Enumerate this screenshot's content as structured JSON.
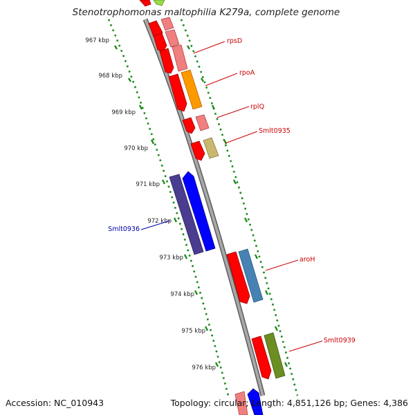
{
  "title": "Stenotrophomonas maltophilia K279a, complete genome",
  "footer": {
    "accession": "Accession: NC_010943",
    "topology": "Topology: circular; Length: 4,851,126 bp; Genes: 4,386"
  },
  "ticks": [
    {
      "label": "967 kbp"
    },
    {
      "label": "968 kbp"
    },
    {
      "label": "969 kbp"
    },
    {
      "label": "970 kbp"
    },
    {
      "label": "971 kbp"
    },
    {
      "label": "972 kbp"
    },
    {
      "label": "973 kbp"
    },
    {
      "label": "974 kbp"
    },
    {
      "label": "975 kbp"
    },
    {
      "label": "976 kbp"
    }
  ],
  "gene_labels": [
    {
      "name": "rpsD",
      "color": "#cc0000"
    },
    {
      "name": "rpoA",
      "color": "#cc0000"
    },
    {
      "name": "rplQ",
      "color": "#cc0000"
    },
    {
      "name": "Smlt0935",
      "color": "#cc0000"
    },
    {
      "name": "Smlt0936",
      "color": "#0000aa"
    },
    {
      "name": "aroH",
      "color": "#cc0000"
    },
    {
      "name": "Smlt0939",
      "color": "#cc0000"
    }
  ],
  "colors": {
    "backbone": "#888888",
    "tick_green": "#1a8a1a",
    "red": "#ff0000",
    "pink": "#f08080",
    "orange": "#ff9900",
    "khaki": "#c8b870",
    "navy": "#4a3d8f",
    "blue": "#0000ff",
    "steel": "#4682b4",
    "olive": "#6b8e23",
    "lime": "#99dd44"
  }
}
